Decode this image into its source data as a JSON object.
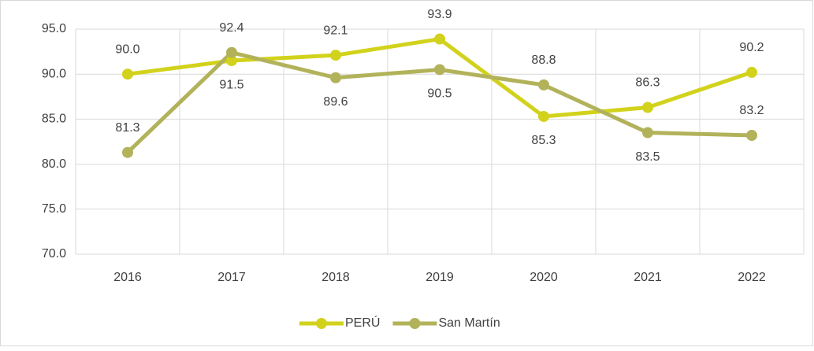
{
  "chart_data": {
    "type": "line",
    "categories": [
      "2016",
      "2017",
      "2018",
      "2019",
      "2020",
      "2021",
      "2022"
    ],
    "series": [
      {
        "name": "PERÚ",
        "color": "#d2d21c",
        "values": [
          90.0,
          91.5,
          92.1,
          93.9,
          85.3,
          86.3,
          90.2
        ],
        "value_labels": [
          "90.0",
          "91.5",
          "92.1",
          "93.9",
          "85.3",
          "86.3",
          "90.2"
        ]
      },
      {
        "name": "San Martín",
        "color": "#b2b25a",
        "values": [
          81.3,
          92.4,
          89.6,
          90.5,
          88.8,
          83.5,
          83.2
        ],
        "value_labels": [
          "81.3",
          "92.4",
          "89.6",
          "90.5",
          "88.8",
          "83.5",
          "83.2"
        ]
      }
    ],
    "ylim": [
      70,
      95
    ],
    "yticks": [
      {
        "value": 70,
        "label": "70.0"
      },
      {
        "value": 75,
        "label": "75.0"
      },
      {
        "value": 80,
        "label": "80.0"
      },
      {
        "value": 85,
        "label": "85.0"
      },
      {
        "value": 90,
        "label": "90.0"
      },
      {
        "value": 95,
        "label": "95.0"
      }
    ],
    "grid": true,
    "legend": "bottom"
  }
}
